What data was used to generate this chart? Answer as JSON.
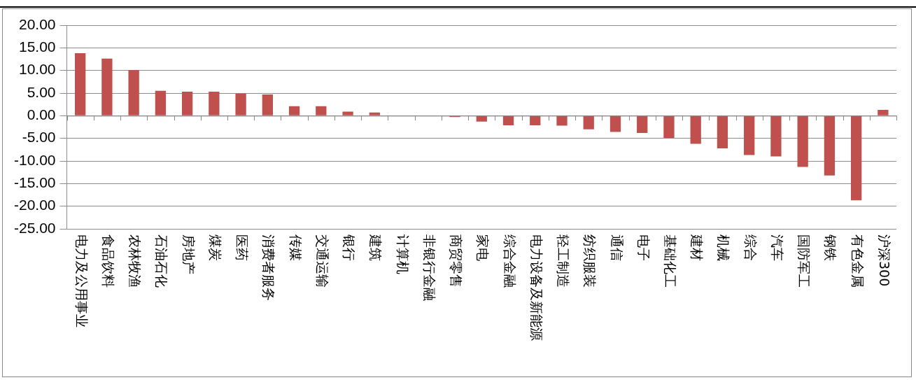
{
  "chart_data": {
    "type": "bar",
    "categories": [
      "电力及公用事业",
      "食品饮料",
      "农林牧渔",
      "石油石化",
      "房地产",
      "煤炭",
      "医药",
      "消费者服务",
      "传媒",
      "交通运输",
      "银行",
      "建筑",
      "计算机",
      "非银行金融",
      "商贸零售",
      "家电",
      "综合金融",
      "电力设备及新能源",
      "轻工制造",
      "纺织服装",
      "通信",
      "电子",
      "基础化工",
      "建材",
      "机械",
      "综合",
      "汽车",
      "国防军工",
      "钢铁",
      "有色金属",
      "沪深300"
    ],
    "values": [
      13.8,
      12.6,
      10.1,
      5.5,
      5.3,
      5.3,
      4.9,
      4.7,
      2.1,
      2.1,
      0.9,
      0.7,
      0.1,
      0.1,
      -0.3,
      -1.3,
      -2.1,
      -2.1,
      -2.2,
      -3.0,
      -3.6,
      -3.8,
      -4.9,
      -6.2,
      -7.2,
      -8.7,
      -9.0,
      -11.3,
      -13.2,
      -18.7,
      1.3
    ],
    "color": "#c0504d",
    "ylim": [
      -25,
      20
    ],
    "yticks": [
      {
        "value": 20,
        "label": "20.00"
      },
      {
        "value": 15,
        "label": "15.00"
      },
      {
        "value": 10,
        "label": "10.00"
      },
      {
        "value": 5,
        "label": "5.00"
      },
      {
        "value": 0,
        "label": "0.00"
      },
      {
        "value": -5,
        "label": "-5.00"
      },
      {
        "value": -10,
        "label": "-10.00"
      },
      {
        "value": -15,
        "label": "-15.00"
      },
      {
        "value": -20,
        "label": "-20.00"
      },
      {
        "value": -25,
        "label": "-25.00"
      }
    ],
    "grid": "y"
  }
}
